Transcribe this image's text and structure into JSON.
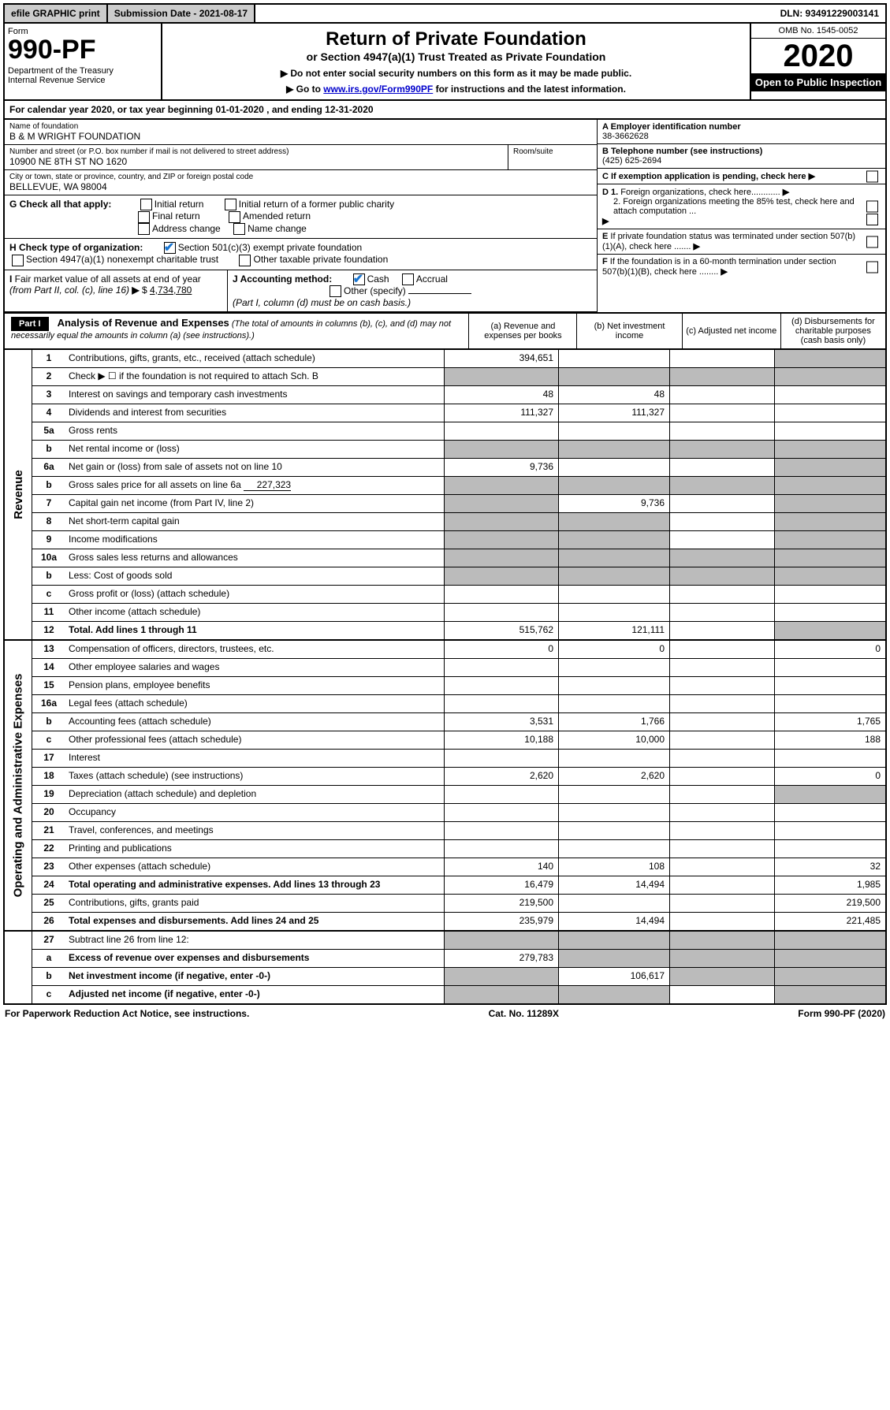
{
  "topbar": {
    "efile": "efile GRAPHIC print",
    "subdate": "Submission Date - 2021-08-17",
    "dln": "DLN: 93491229003141"
  },
  "header": {
    "form_label": "Form",
    "form_no": "990-PF",
    "dept": "Department of the Treasury\nInternal Revenue Service",
    "title": "Return of Private Foundation",
    "subtitle": "or Section 4947(a)(1) Trust Treated as Private Foundation",
    "instr1": "▶ Do not enter social security numbers on this form as it may be made public.",
    "instr2_pre": "▶ Go to ",
    "instr2_link": "www.irs.gov/Form990PF",
    "instr2_post": " for instructions and the latest information.",
    "omb": "OMB No. 1545-0052",
    "year": "2020",
    "inspect": "Open to Public Inspection"
  },
  "calyear": "For calendar year 2020, or tax year beginning 01-01-2020              , and ending 12-31-2020",
  "info": {
    "name_label": "Name of foundation",
    "name": "B & M WRIGHT FOUNDATION",
    "addr_label": "Number and street (or P.O. box number if mail is not delivered to street address)",
    "addr": "10900 NE 8TH ST NO 1620",
    "room_label": "Room/suite",
    "city_label": "City or town, state or province, country, and ZIP or foreign postal code",
    "city": "BELLEVUE, WA  98004",
    "a_label": "A Employer identification number",
    "a_val": "38-3662628",
    "b_label": "B Telephone number (see instructions)",
    "b_val": "(425) 625-2694",
    "c_label": "C If exemption application is pending, check here",
    "d1": "D 1. Foreign organizations, check here............",
    "d2": "2. Foreign organizations meeting the 85% test, check here and attach computation ...",
    "e_label": "E If private foundation status was terminated under section 507(b)(1)(A), check here .......",
    "f_label": "F If the foundation is in a 60-month termination under section 507(b)(1)(B), check here ........"
  },
  "g": {
    "label": "G Check all that apply:",
    "opts": [
      "Initial return",
      "Initial return of a former public charity",
      "Final return",
      "Amended return",
      "Address change",
      "Name change"
    ]
  },
  "h": {
    "label": "H Check type of organization:",
    "o1": "Section 501(c)(3) exempt private foundation",
    "o2": "Section 4947(a)(1) nonexempt charitable trust",
    "o3": "Other taxable private foundation"
  },
  "i": {
    "label": "I Fair market value of all assets at end of year (from Part II, col. (c), line 16) ▶ $  4,734,780",
    "value": "4,734,780"
  },
  "j": {
    "label": "J Accounting method:",
    "cash": "Cash",
    "accrual": "Accrual",
    "other": "Other (specify)",
    "note": "(Part I, column (d) must be on cash basis.)"
  },
  "part1": {
    "label": "Part I",
    "title": "Analysis of Revenue and Expenses",
    "desc": "(The total of amounts in columns (b), (c), and (d) may not necessarily equal the amounts in column (a) (see instructions).)",
    "col_a": "(a)   Revenue and expenses per books",
    "col_b": "(b)   Net investment income",
    "col_c": "(c)   Adjusted net income",
    "col_d": "(d)   Disbursements for charitable purposes (cash basis only)"
  },
  "revenue_label": "Revenue",
  "expense_label": "Operating and Administrative Expenses",
  "rows": {
    "r1": {
      "no": "1",
      "desc": "Contributions, gifts, grants, etc., received (attach schedule)",
      "a": "394,651"
    },
    "r2": {
      "no": "2",
      "desc": "Check ▶ ☐ if the foundation is not required to attach Sch. B"
    },
    "r3": {
      "no": "3",
      "desc": "Interest on savings and temporary cash investments",
      "a": "48",
      "b": "48"
    },
    "r4": {
      "no": "4",
      "desc": "Dividends and interest from securities",
      "a": "111,327",
      "b": "111,327"
    },
    "r5a": {
      "no": "5a",
      "desc": "Gross rents"
    },
    "r5b": {
      "no": "b",
      "desc": "Net rental income or (loss)"
    },
    "r6a": {
      "no": "6a",
      "desc": "Net gain or (loss) from sale of assets not on line 10",
      "a": "9,736"
    },
    "r6b": {
      "no": "b",
      "desc": "Gross sales price for all assets on line 6a",
      "inline": "227,323"
    },
    "r7": {
      "no": "7",
      "desc": "Capital gain net income (from Part IV, line 2)",
      "b": "9,736"
    },
    "r8": {
      "no": "8",
      "desc": "Net short-term capital gain"
    },
    "r9": {
      "no": "9",
      "desc": "Income modifications"
    },
    "r10a": {
      "no": "10a",
      "desc": "Gross sales less returns and allowances"
    },
    "r10b": {
      "no": "b",
      "desc": "Less: Cost of goods sold"
    },
    "r10c": {
      "no": "c",
      "desc": "Gross profit or (loss) (attach schedule)"
    },
    "r11": {
      "no": "11",
      "desc": "Other income (attach schedule)"
    },
    "r12": {
      "no": "12",
      "desc": "Total. Add lines 1 through 11",
      "a": "515,762",
      "b": "121,111",
      "bold": true
    },
    "r13": {
      "no": "13",
      "desc": "Compensation of officers, directors, trustees, etc.",
      "a": "0",
      "b": "0",
      "d": "0"
    },
    "r14": {
      "no": "14",
      "desc": "Other employee salaries and wages"
    },
    "r15": {
      "no": "15",
      "desc": "Pension plans, employee benefits"
    },
    "r16a": {
      "no": "16a",
      "desc": "Legal fees (attach schedule)"
    },
    "r16b": {
      "no": "b",
      "desc": "Accounting fees (attach schedule)",
      "a": "3,531",
      "b": "1,766",
      "d": "1,765"
    },
    "r16c": {
      "no": "c",
      "desc": "Other professional fees (attach schedule)",
      "a": "10,188",
      "b": "10,000",
      "d": "188"
    },
    "r17": {
      "no": "17",
      "desc": "Interest"
    },
    "r18": {
      "no": "18",
      "desc": "Taxes (attach schedule) (see instructions)",
      "a": "2,620",
      "b": "2,620",
      "d": "0"
    },
    "r19": {
      "no": "19",
      "desc": "Depreciation (attach schedule) and depletion"
    },
    "r20": {
      "no": "20",
      "desc": "Occupancy"
    },
    "r21": {
      "no": "21",
      "desc": "Travel, conferences, and meetings"
    },
    "r22": {
      "no": "22",
      "desc": "Printing and publications"
    },
    "r23": {
      "no": "23",
      "desc": "Other expenses (attach schedule)",
      "a": "140",
      "b": "108",
      "d": "32"
    },
    "r24": {
      "no": "24",
      "desc": "Total operating and administrative expenses. Add lines 13 through 23",
      "a": "16,479",
      "b": "14,494",
      "d": "1,985",
      "bold": true
    },
    "r25": {
      "no": "25",
      "desc": "Contributions, gifts, grants paid",
      "a": "219,500",
      "d": "219,500"
    },
    "r26": {
      "no": "26",
      "desc": "Total expenses and disbursements. Add lines 24 and 25",
      "a": "235,979",
      "b": "14,494",
      "d": "221,485",
      "bold": true
    },
    "r27": {
      "no": "27",
      "desc": "Subtract line 26 from line 12:"
    },
    "r27a": {
      "no": "a",
      "desc": "Excess of revenue over expenses and disbursements",
      "a": "279,783",
      "bold": true
    },
    "r27b": {
      "no": "b",
      "desc": "Net investment income (if negative, enter -0-)",
      "b": "106,617",
      "bold": true
    },
    "r27c": {
      "no": "c",
      "desc": "Adjusted net income (if negative, enter -0-)",
      "bold": true
    }
  },
  "footer": {
    "left": "For Paperwork Reduction Act Notice, see instructions.",
    "mid": "Cat. No. 11289X",
    "right": "Form 990-PF (2020)"
  }
}
